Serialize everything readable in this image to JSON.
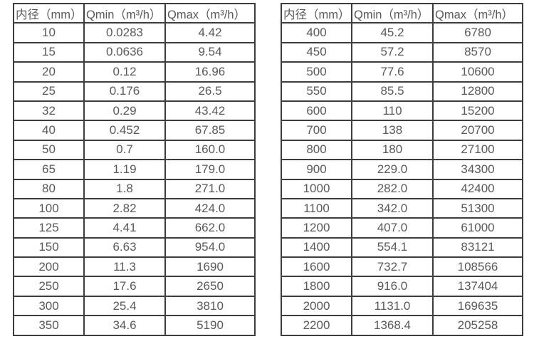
{
  "page": {
    "background_color": "#ffffff",
    "border_color": "#3d3d3d",
    "text_color": "#595959"
  },
  "tables": [
    {
      "name": "flow-range-table-small-diameters",
      "headers": [
        "内径（mm）",
        "Qmin（m³/h）",
        "Qmax（m³/h）"
      ],
      "rows": [
        [
          "10",
          "0.0283",
          "4.42"
        ],
        [
          "15",
          "0.0636",
          "9.54"
        ],
        [
          "20",
          "0.12",
          "16.96"
        ],
        [
          "25",
          "0.176",
          "26.5"
        ],
        [
          "32",
          "0.29",
          "43.42"
        ],
        [
          "40",
          "0.452",
          "67.85"
        ],
        [
          "50",
          "0.7",
          "160.0"
        ],
        [
          "65",
          "1.19",
          "179.0"
        ],
        [
          "80",
          "1.8",
          "271.0"
        ],
        [
          "100",
          "2.82",
          "424.0"
        ],
        [
          "125",
          "4.41",
          "662.0"
        ],
        [
          "150",
          "6.63",
          "954.0"
        ],
        [
          "200",
          "11.3",
          "1690"
        ],
        [
          "250",
          "17.6",
          "2650"
        ],
        [
          "300",
          "25.4",
          "3810"
        ],
        [
          "350",
          "34.6",
          "5190"
        ]
      ]
    },
    {
      "name": "flow-range-table-large-diameters",
      "headers": [
        "内径（mm）",
        "Qmin（m³/h）",
        "Qmax（m³/h）"
      ],
      "rows": [
        [
          "400",
          "45.2",
          "6780"
        ],
        [
          "450",
          "57.2",
          "8570"
        ],
        [
          "500",
          "77.6",
          "10600"
        ],
        [
          "550",
          "85.5",
          "12800"
        ],
        [
          "600",
          "110",
          "15200"
        ],
        [
          "700",
          "138",
          "20700"
        ],
        [
          "800",
          "180",
          "27100"
        ],
        [
          "900",
          "229.0",
          "34300"
        ],
        [
          "1000",
          "282.0",
          "42400"
        ],
        [
          "1100",
          "342.0",
          "51300"
        ],
        [
          "1200",
          "407.0",
          "61000"
        ],
        [
          "1400",
          "554.1",
          "83121"
        ],
        [
          "1600",
          "732.7",
          "108566"
        ],
        [
          "1800",
          "916.0",
          "137404"
        ],
        [
          "2000",
          "1131.0",
          "169635"
        ],
        [
          "2200",
          "1368.4",
          "205258"
        ]
      ]
    }
  ]
}
